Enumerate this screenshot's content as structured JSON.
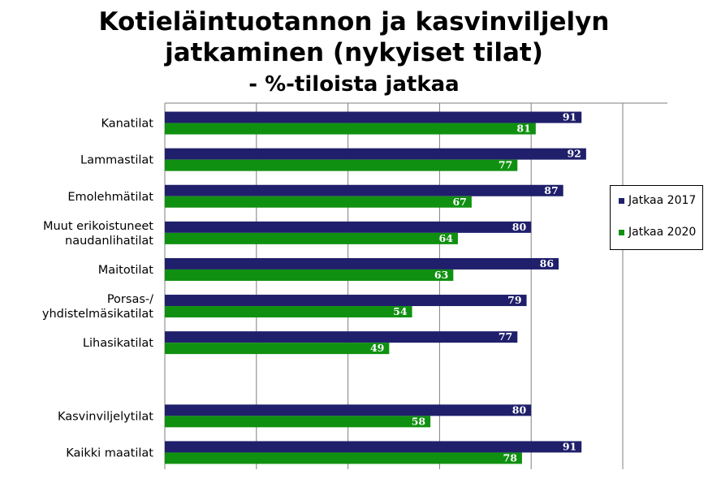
{
  "chart_data": {
    "type": "bar",
    "orientation": "horizontal",
    "title_lines": [
      "Kotieläintuotannon ja kasvinviljelyn",
      "jatkaminen (nykyiset tilat)"
    ],
    "subtitle": "- %-tiloista jatkaa",
    "categories": [
      [
        "Kanatilat"
      ],
      [
        "Lammastilat"
      ],
      [
        "Emolehmätilat"
      ],
      [
        "Muut erikoistuneet",
        "naudanlihatilat"
      ],
      [
        "Maitotilat"
      ],
      [
        "Porsas-/",
        "yhdistelmäsikatilat"
      ],
      [
        "Lihasikatilat"
      ],
      [],
      [
        "Kasvinviljelytilat"
      ],
      [
        "Kaikki maatilat"
      ]
    ],
    "series": [
      {
        "name": "Jatkaa 2017",
        "color": "#1f1f6b",
        "values": [
          91,
          92,
          87,
          80,
          86,
          79,
          77,
          null,
          80,
          91
        ]
      },
      {
        "name": "Jatkaa 2020",
        "color": "#109010",
        "values": [
          81,
          77,
          67,
          64,
          63,
          54,
          49,
          null,
          58,
          78
        ]
      }
    ],
    "xlim": [
      0,
      110
    ],
    "grid": true,
    "legend_position": "right"
  }
}
